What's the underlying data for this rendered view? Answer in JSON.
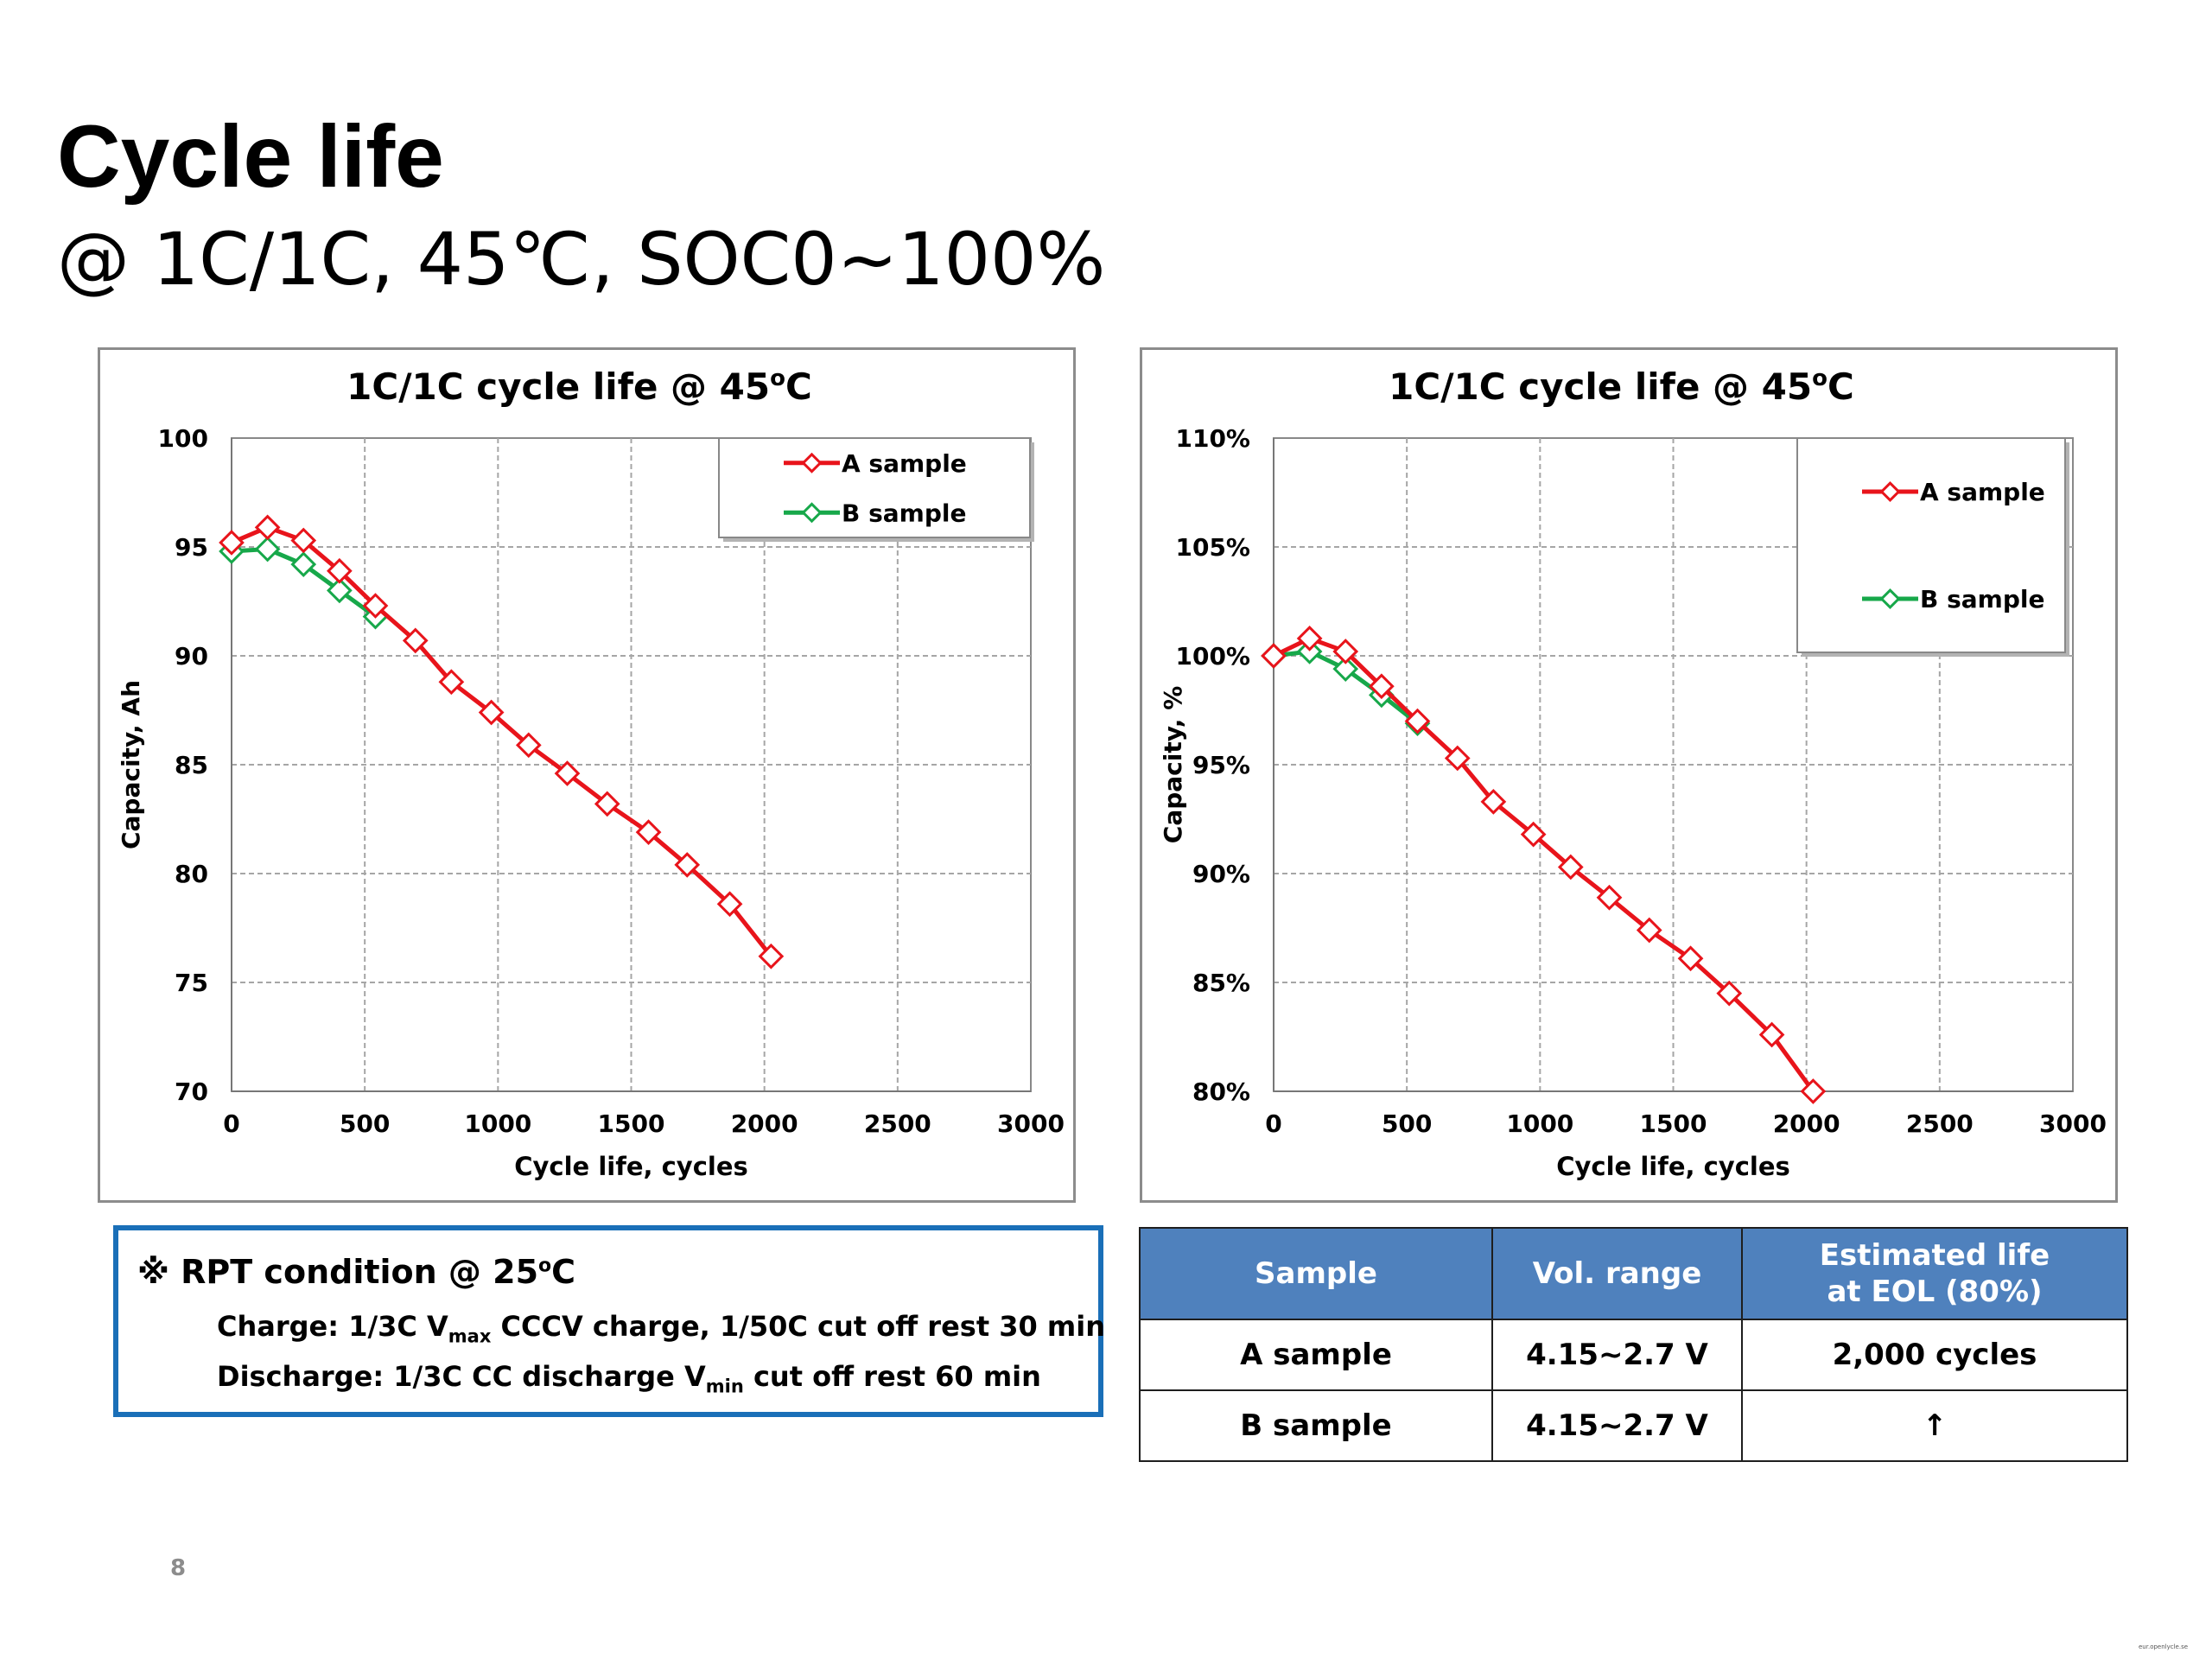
{
  "slide": {
    "title": "Cycle life",
    "subtitle": "@ 1C/1C, 45℃, SOC0~100%",
    "page_number": "8",
    "watermark": "eur.openlycle.se"
  },
  "rpt": {
    "title": "※ RPT condition @ 25",
    "title_deg": "o",
    "title_unit": "C",
    "charge_prefix": "Charge: 1/3C V",
    "charge_sub": "max",
    "charge_suffix": " CCCV charge, 1/50C cut off rest 30 min",
    "discharge_prefix": "Discharge: 1/3C CC discharge V",
    "discharge_sub": "min",
    "discharge_suffix": " cut off  rest 60 min"
  },
  "table": {
    "headers": {
      "sample": "Sample",
      "vol_range": "Vol. range",
      "life_line1": "Estimated life",
      "life_line2": "at EOL (80%)"
    },
    "rows": [
      {
        "sample": "A sample",
        "vol_range": "4.15~2.7 V",
        "life": "2,000 cycles"
      },
      {
        "sample": "B sample",
        "vol_range": "4.15~2.7 V",
        "life": "↑"
      }
    ]
  },
  "colors": {
    "series_a": "#e8141b",
    "series_b": "#17a84a",
    "table_header": "#4f81bd",
    "rpt_border": "#1a6fb8",
    "grid": "#a6a6a6"
  },
  "chart_data": [
    {
      "id": "left",
      "type": "line",
      "title": "1C/1C cycle life @ 45",
      "title_deg": "o",
      "title_unit": "C",
      "xlabel": "Cycle life, cycles",
      "ylabel": "Capacity, Ah",
      "xlim": [
        0,
        3000
      ],
      "ylim": [
        70,
        100
      ],
      "x_ticks": [
        0,
        500,
        1000,
        1500,
        2000,
        2500,
        3000
      ],
      "x_tick_labels": [
        "0",
        "500",
        "1000",
        "1500",
        "2000",
        "2500",
        "3000"
      ],
      "y_ticks": [
        70,
        75,
        80,
        85,
        90,
        95,
        100
      ],
      "y_tick_labels": [
        "70",
        "75",
        "80",
        "85",
        "90",
        "95",
        "100"
      ],
      "grid": true,
      "legend_position": "top-right",
      "series": [
        {
          "name": "A sample",
          "x": [
            0,
            135,
            270,
            405,
            540,
            690,
            825,
            975,
            1115,
            1260,
            1410,
            1565,
            1710,
            1870,
            2025
          ],
          "y": [
            95.2,
            95.9,
            95.3,
            93.9,
            92.3,
            90.7,
            88.8,
            87.4,
            85.9,
            84.6,
            83.2,
            81.9,
            80.4,
            78.6,
            76.2
          ]
        },
        {
          "name": "B sample",
          "x": [
            0,
            135,
            270,
            405,
            540
          ],
          "y": [
            94.8,
            94.9,
            94.2,
            93.0,
            91.8
          ]
        }
      ]
    },
    {
      "id": "right",
      "type": "line",
      "title": "1C/1C cycle life @ 45",
      "title_deg": "o",
      "title_unit": "C",
      "xlabel": "Cycle life, cycles",
      "ylabel": "Capacity, %",
      "xlim": [
        0,
        3000
      ],
      "ylim": [
        80,
        110
      ],
      "x_ticks": [
        0,
        500,
        1000,
        1500,
        2000,
        2500,
        3000
      ],
      "x_tick_labels": [
        "0",
        "500",
        "1000",
        "1500",
        "2000",
        "2500",
        "3000"
      ],
      "y_ticks": [
        80,
        85,
        90,
        95,
        100,
        105,
        110
      ],
      "y_tick_labels": [
        "80%",
        "85%",
        "90%",
        "95%",
        "100%",
        "105%",
        "110%"
      ],
      "grid": true,
      "legend_position": "top-right",
      "series": [
        {
          "name": "A sample",
          "x": [
            0,
            135,
            270,
            405,
            540,
            690,
            825,
            975,
            1115,
            1260,
            1410,
            1565,
            1710,
            1870,
            2025
          ],
          "y": [
            100.0,
            100.8,
            100.2,
            98.6,
            97.0,
            95.3,
            93.3,
            91.8,
            90.3,
            88.9,
            87.4,
            86.1,
            84.5,
            82.6,
            80.0
          ]
        },
        {
          "name": "B sample",
          "x": [
            0,
            135,
            270,
            405,
            540
          ],
          "y": [
            100.0,
            100.2,
            99.4,
            98.2,
            96.9
          ]
        }
      ]
    }
  ]
}
